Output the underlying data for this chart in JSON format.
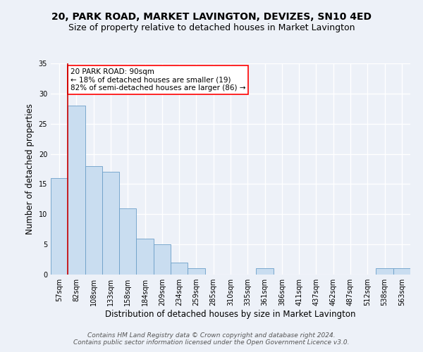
{
  "title_line1": "20, PARK ROAD, MARKET LAVINGTON, DEVIZES, SN10 4ED",
  "title_line2": "Size of property relative to detached houses in Market Lavington",
  "xlabel": "Distribution of detached houses by size in Market Lavington",
  "ylabel": "Number of detached properties",
  "categories": [
    "57sqm",
    "82sqm",
    "108sqm",
    "133sqm",
    "158sqm",
    "184sqm",
    "209sqm",
    "234sqm",
    "259sqm",
    "285sqm",
    "310sqm",
    "335sqm",
    "361sqm",
    "386sqm",
    "411sqm",
    "437sqm",
    "462sqm",
    "487sqm",
    "512sqm",
    "538sqm",
    "563sqm"
  ],
  "values": [
    16,
    28,
    18,
    17,
    11,
    6,
    5,
    2,
    1,
    0,
    0,
    0,
    1,
    0,
    0,
    0,
    0,
    0,
    0,
    1,
    1
  ],
  "bar_color": "#c9ddf0",
  "bar_edge_color": "#6b9fc8",
  "red_line_x": 0.5,
  "annotation_text": "20 PARK ROAD: 90sqm\n← 18% of detached houses are smaller (19)\n82% of semi-detached houses are larger (86) →",
  "annotation_box_color": "white",
  "annotation_box_edge_color": "red",
  "red_line_color": "#cc0000",
  "ylim": [
    0,
    35
  ],
  "yticks": [
    0,
    5,
    10,
    15,
    20,
    25,
    30,
    35
  ],
  "background_color": "#edf1f8",
  "plot_background_color": "#edf1f8",
  "grid_color": "white",
  "footer_line1": "Contains HM Land Registry data © Crown copyright and database right 2024.",
  "footer_line2": "Contains public sector information licensed under the Open Government Licence v3.0.",
  "title_fontsize": 10,
  "subtitle_fontsize": 9,
  "axis_label_fontsize": 8.5,
  "tick_fontsize": 7,
  "annotation_fontsize": 7.5,
  "footer_fontsize": 6.5
}
